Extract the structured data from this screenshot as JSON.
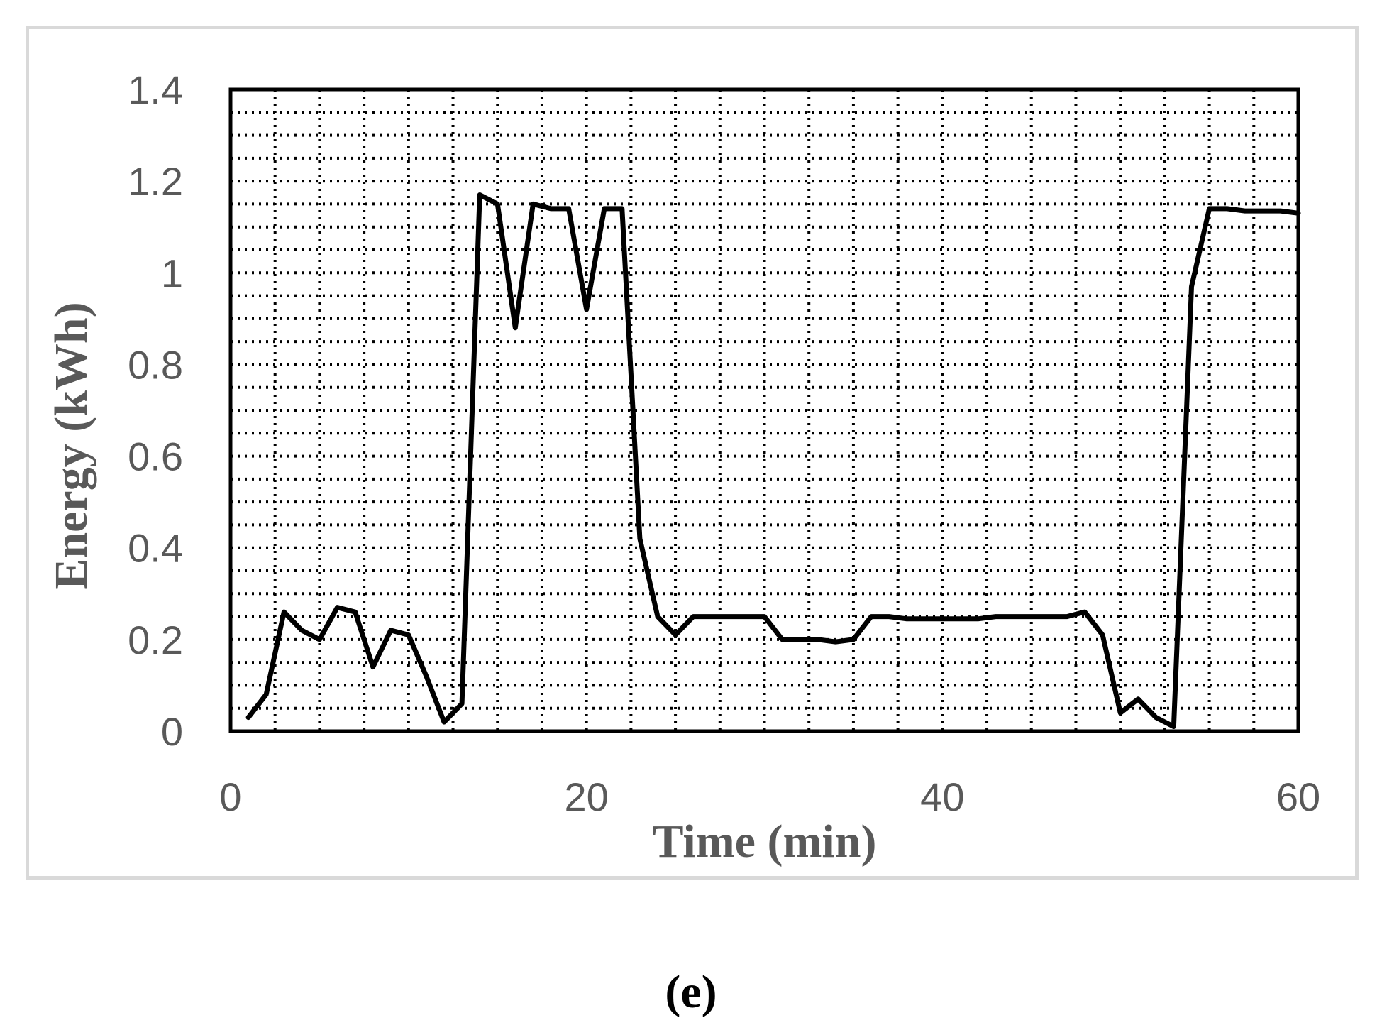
{
  "panel_label": "(e)",
  "chart_data": {
    "type": "line",
    "title": "",
    "xlabel": "Time (min)",
    "ylabel": "Energy (kWh)",
    "xlim": [
      0,
      60
    ],
    "ylim": [
      0,
      1.4
    ],
    "x_ticks": [
      0,
      20,
      40,
      60
    ],
    "x_tick_labels": [
      "0",
      "20",
      "40",
      "60"
    ],
    "y_ticks": [
      0,
      0.2,
      0.4,
      0.6,
      0.8,
      1,
      1.2,
      1.4
    ],
    "y_tick_labels": [
      "0",
      "0.2",
      "0.4",
      "0.6",
      "0.8",
      "1",
      "1.2",
      "1.4"
    ],
    "grid": true,
    "grid_style": "dotted",
    "line_color": "#000000",
    "series": [
      {
        "x": [
          1,
          2,
          3,
          4,
          5,
          6,
          7,
          8,
          9,
          10,
          11,
          12,
          13,
          14,
          15,
          16,
          17,
          18,
          19,
          20,
          21,
          22,
          23,
          24,
          25,
          26,
          27,
          28,
          29,
          30,
          31,
          32,
          33,
          34,
          35,
          36,
          37,
          38,
          39,
          40,
          41,
          42,
          43,
          44,
          45,
          46,
          47,
          48,
          49,
          50,
          51,
          52,
          53,
          54,
          55,
          56,
          57,
          58,
          59,
          60
        ],
        "values": [
          0.03,
          0.08,
          0.26,
          0.22,
          0.2,
          0.27,
          0.26,
          0.14,
          0.22,
          0.21,
          0.12,
          0.02,
          0.06,
          1.17,
          1.15,
          0.88,
          1.15,
          1.14,
          1.14,
          0.92,
          1.14,
          1.14,
          0.42,
          0.25,
          0.21,
          0.25,
          0.25,
          0.25,
          0.25,
          0.25,
          0.2,
          0.2,
          0.2,
          0.195,
          0.2,
          0.25,
          0.25,
          0.245,
          0.245,
          0.245,
          0.245,
          0.245,
          0.25,
          0.25,
          0.25,
          0.25,
          0.25,
          0.26,
          0.21,
          0.04,
          0.07,
          0.03,
          0.01,
          0.97,
          1.14,
          1.14,
          1.135,
          1.135,
          1.135,
          1.13
        ]
      }
    ]
  }
}
